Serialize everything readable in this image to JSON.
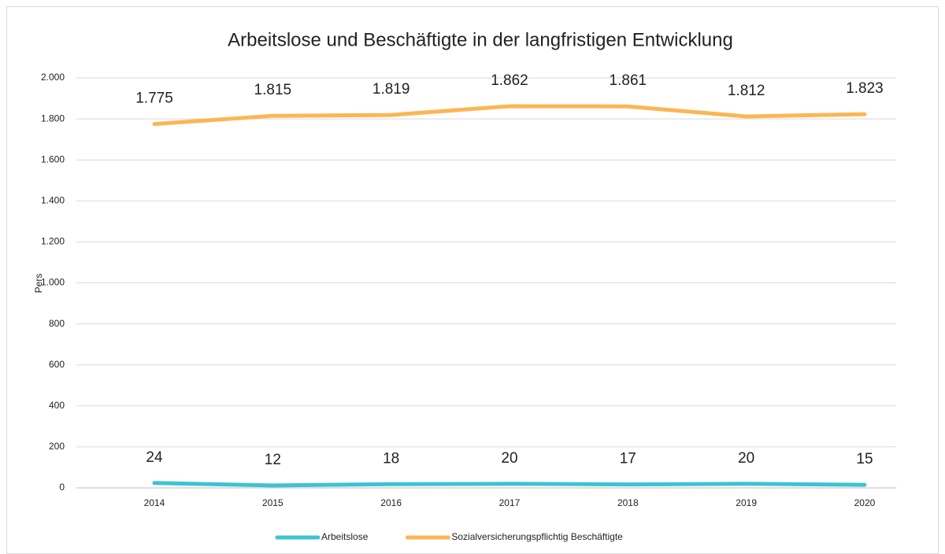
{
  "chart_data": {
    "type": "line",
    "title": "Arbeitslose und Beschäftigte in der langfristigen Entwicklung",
    "y_label": "Pers",
    "categories": [
      "2014",
      "2015",
      "2016",
      "2017",
      "2018",
      "2019",
      "2020"
    ],
    "series": [
      {
        "name": "Arbeitslose",
        "color": "#3dc3d3",
        "values": [
          24,
          12,
          18,
          20,
          17,
          20,
          15
        ]
      },
      {
        "name": "Sozialversicherungspflichtig Beschäftigte",
        "color": "#fbb654",
        "values": [
          1775,
          1815,
          1819,
          1862,
          1861,
          1812,
          1823
        ],
        "value_labels": [
          "1.775",
          "1.815",
          "1.819",
          "1.862",
          "1.861",
          "1.812",
          "1.823"
        ]
      }
    ],
    "ylim": [
      0,
      2000
    ],
    "yticks": [
      0,
      200,
      400,
      600,
      800,
      {
        "value": 1000,
        "label": "1.000"
      },
      {
        "value": 1200,
        "label": "1.200"
      },
      {
        "value": 1400,
        "label": "1.400"
      },
      {
        "value": 1600,
        "label": "1.600"
      },
      {
        "value": 1800,
        "label": "1.800"
      },
      {
        "value": 2000,
        "label": "2.000"
      }
    ],
    "grid": true,
    "legend": "bottom"
  }
}
